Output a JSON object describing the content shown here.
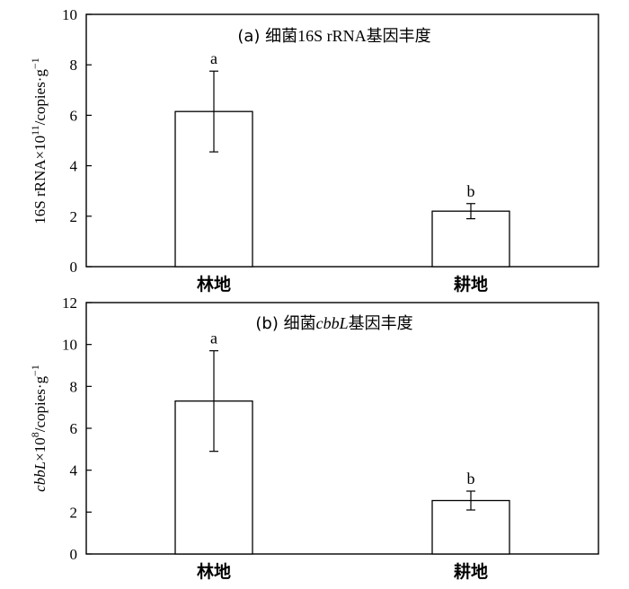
{
  "chart_data": [
    {
      "type": "bar",
      "title_prefix": "(a) 细菌",
      "title_gene": "16S rRNA",
      "title_suffix": "基因丰度",
      "ylabel_main": "16S rRNA×10",
      "ylabel_exp": "11",
      "ylabel_unit": "/copies·g",
      "ylabel_unit_exp": "−1",
      "ylim": [
        0,
        10
      ],
      "yticks": [
        "0",
        "2",
        "4",
        "6",
        "8",
        "10"
      ],
      "categories": [
        "林地",
        "耕地"
      ],
      "values": [
        6.15,
        2.2
      ],
      "errors": [
        1.6,
        0.3
      ],
      "significance": [
        "a",
        "b"
      ],
      "grid": false
    },
    {
      "type": "bar",
      "title_prefix": "(b) 细菌",
      "title_gene": "cbbL",
      "title_suffix": "基因丰度",
      "ylabel_main": "cbbL",
      "ylabel_mid": "×10",
      "ylabel_exp": "8",
      "ylabel_unit": "/copies·g",
      "ylabel_unit_exp": "−1",
      "ylim": [
        0,
        12
      ],
      "yticks": [
        "0",
        "2",
        "4",
        "6",
        "8",
        "10",
        "12"
      ],
      "categories": [
        "林地",
        "耕地"
      ],
      "values": [
        7.3,
        2.55
      ],
      "errors": [
        2.4,
        0.45
      ],
      "significance": [
        "a",
        "b"
      ],
      "grid": false
    }
  ]
}
